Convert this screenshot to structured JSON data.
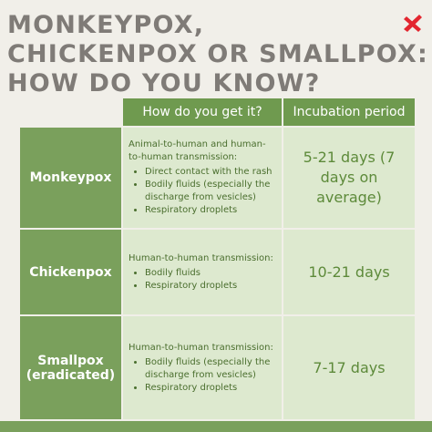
{
  "header": {
    "title_lines": [
      "MONKEYPOX,",
      "CHICKENPOX OR SMALLPOX:",
      "HOW DO YOU KNOW?"
    ]
  },
  "table": {
    "columns": [
      "How do you get it?",
      "Incubation period"
    ],
    "rows": [
      {
        "name": "Monkeypox",
        "transmission": "Animal-to-human and human-to-human transmission:",
        "items": [
          "Direct contact with the rash",
          "Bodily fluids (especially the discharge from vesicles)",
          "Respiratory droplets"
        ],
        "incubation": "5-21 days (7 days on average)"
      },
      {
        "name": "Chickenpox",
        "transmission": "Human-to-human transmission:",
        "items": [
          "Bodily fluids",
          "Respiratory droplets"
        ],
        "incubation": "10-21 days"
      },
      {
        "name": "Smallpox (eradicated)",
        "transmission": "Human-to-human transmission:",
        "items": [
          "Bodily fluids (especially the discharge from vesicles)",
          "Respiratory droplets"
        ],
        "incubation": "7-17 days"
      }
    ]
  }
}
